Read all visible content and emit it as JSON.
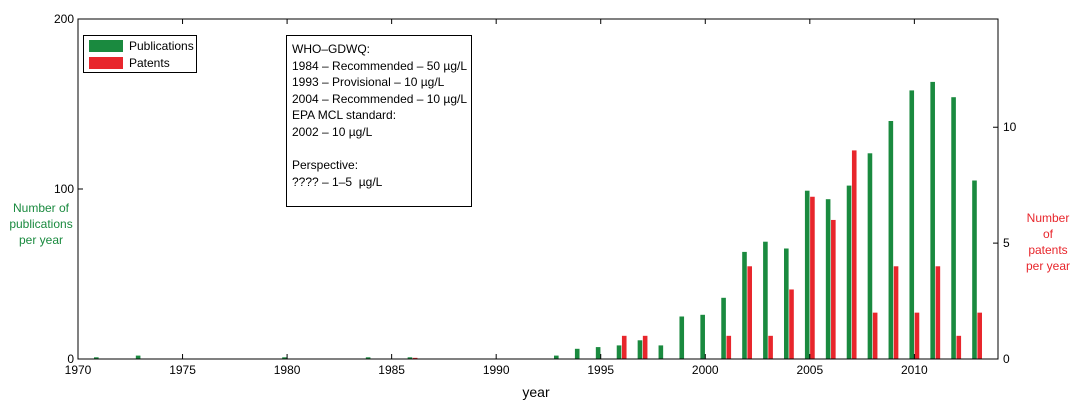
{
  "chart_data": {
    "type": "bar",
    "xlabel": "year",
    "ylabel_left": [
      "Number of",
      "publications",
      "per year"
    ],
    "ylabel_right": [
      "Number",
      "of",
      "patents",
      "per year"
    ],
    "xlim": [
      1970,
      2014
    ],
    "xticks": [
      "1970",
      "1975",
      "1980",
      "1985",
      "1990",
      "1995",
      "2000",
      "2005",
      "2010"
    ],
    "ylim_left": [
      0,
      200
    ],
    "yticks_left": [
      "0",
      "100",
      "200"
    ],
    "ylim_right": [
      0,
      14.67
    ],
    "yticks_right": [
      "0",
      "5",
      "10"
    ],
    "colors": {
      "publications": "#1a8a3f",
      "patents": "#e8262c"
    },
    "series": [
      {
        "name": "Publications",
        "axis": "left",
        "points": [
          [
            1971,
            1
          ],
          [
            1973,
            2
          ],
          [
            1980,
            1
          ],
          [
            1984,
            1
          ],
          [
            1986,
            1
          ],
          [
            1993,
            2
          ],
          [
            1994,
            6
          ],
          [
            1995,
            7
          ],
          [
            1996,
            8
          ],
          [
            1997,
            11
          ],
          [
            1998,
            8
          ],
          [
            1999,
            25
          ],
          [
            2000,
            26
          ],
          [
            2001,
            36
          ],
          [
            2002,
            63
          ],
          [
            2003,
            69
          ],
          [
            2004,
            65
          ],
          [
            2005,
            99
          ],
          [
            2006,
            94
          ],
          [
            2007,
            102
          ],
          [
            2008,
            121
          ],
          [
            2009,
            140
          ],
          [
            2010,
            158
          ],
          [
            2011,
            163
          ],
          [
            2012,
            154
          ],
          [
            2013,
            105
          ]
        ]
      },
      {
        "name": "Patents",
        "axis": "right",
        "points": [
          [
            1986,
            0.05
          ],
          [
            1996,
            1
          ],
          [
            1997,
            1
          ],
          [
            2001,
            1
          ],
          [
            2002,
            4
          ],
          [
            2003,
            1
          ],
          [
            2004,
            3
          ],
          [
            2005,
            7
          ],
          [
            2006,
            6
          ],
          [
            2007,
            9
          ],
          [
            2008,
            2
          ],
          [
            2009,
            4
          ],
          [
            2010,
            2
          ],
          [
            2011,
            4
          ],
          [
            2012,
            1
          ],
          [
            2013,
            2
          ]
        ]
      }
    ],
    "legend": {
      "position": "top-left",
      "entries": [
        "Publications",
        "Patents"
      ]
    },
    "annotation": {
      "position": "top-left",
      "lines": [
        "WHO–GDWQ:",
        "1984 – Recommended – 50 µg/L",
        "1993 – Provisional – 10 µg/L",
        "2004 – Recommended – 10 µg/L",
        "EPA MCL standard:",
        "2002 – 10 µg/L",
        "",
        "Perspective:",
        "???? – 1–5  µg/L"
      ]
    }
  }
}
